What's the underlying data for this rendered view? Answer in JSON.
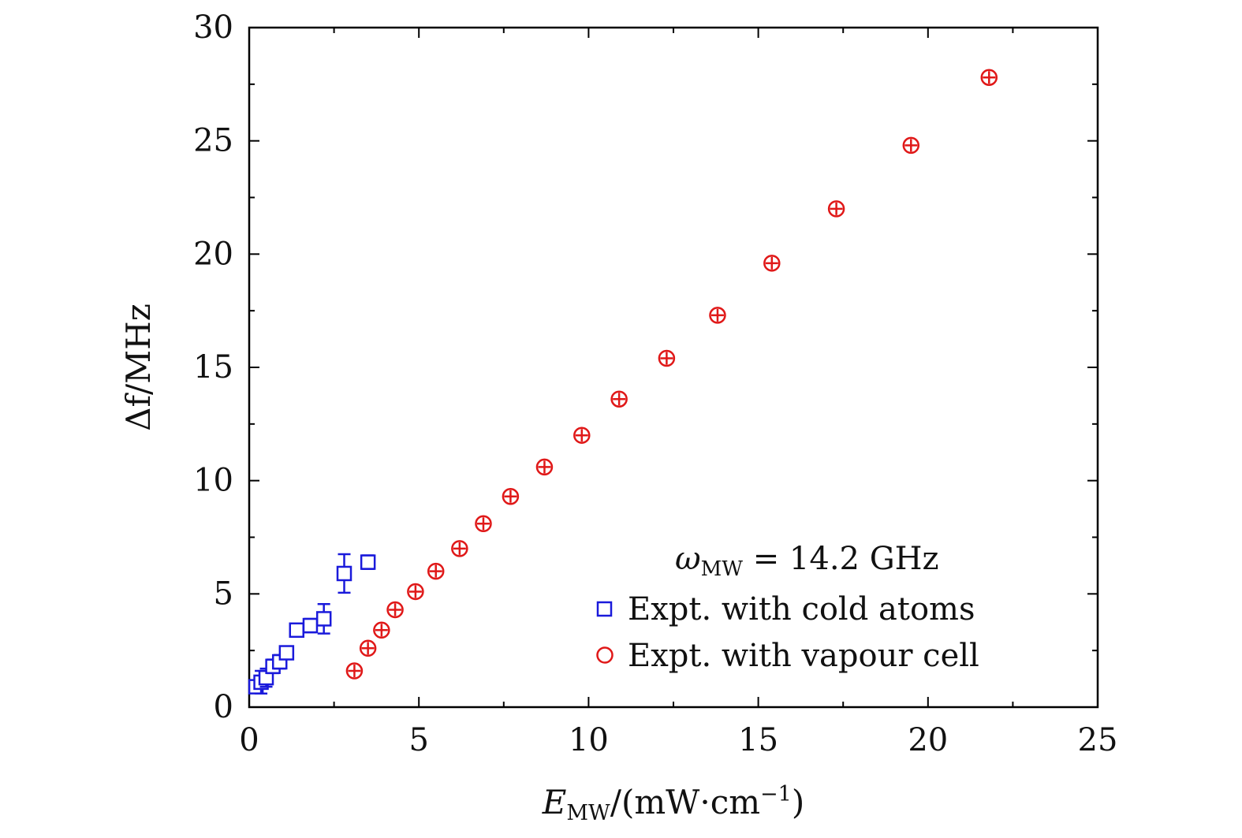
{
  "chart_data": {
    "type": "scatter",
    "xlabel": {
      "main": "E",
      "sub": "MW",
      "unit": "/(mW·cm",
      "sup": "−1",
      "close": ")"
    },
    "ylabel": "Δf/MHz",
    "xlim": [
      0,
      25
    ],
    "ylim": [
      0,
      30
    ],
    "xticks": [
      "0",
      "5",
      "10",
      "15",
      "20",
      "25"
    ],
    "yticks": [
      "0",
      "5",
      "10",
      "15",
      "20",
      "25",
      "30"
    ],
    "annotation": {
      "main": "ω",
      "sub": "MW",
      "rest": " = 14.2 GHz"
    },
    "legend_position": "bottom-right",
    "grid": false,
    "series": [
      {
        "name": "Expt. with cold atoms",
        "marker": "square",
        "color": "#1a1adb",
        "points": [
          {
            "x": 0.2,
            "y": 0.9,
            "err": 0.2
          },
          {
            "x": 0.35,
            "y": 1.1,
            "err": 0.5
          },
          {
            "x": 0.5,
            "y": 1.3,
            "err": 0.4
          },
          {
            "x": 0.7,
            "y": 1.8,
            "err": 0.3
          },
          {
            "x": 0.9,
            "y": 2.0,
            "err": 0.3
          },
          {
            "x": 1.1,
            "y": 2.4,
            "err": 0.25
          },
          {
            "x": 1.4,
            "y": 3.4,
            "err": 0.25
          },
          {
            "x": 1.8,
            "y": 3.6,
            "err": 0.3
          },
          {
            "x": 2.2,
            "y": 3.9,
            "err": 0.65
          },
          {
            "x": 2.8,
            "y": 5.9,
            "err": 0.85
          },
          {
            "x": 3.5,
            "y": 6.4,
            "err": 0.3
          }
        ]
      },
      {
        "name": "Expt. with vapour cell",
        "marker": "circle",
        "color": "#e01818",
        "points": [
          {
            "x": 3.1,
            "y": 1.6
          },
          {
            "x": 3.5,
            "y": 2.6
          },
          {
            "x": 3.9,
            "y": 3.4
          },
          {
            "x": 4.3,
            "y": 4.3
          },
          {
            "x": 4.9,
            "y": 5.1
          },
          {
            "x": 5.5,
            "y": 6.0
          },
          {
            "x": 6.2,
            "y": 7.0
          },
          {
            "x": 6.9,
            "y": 8.1
          },
          {
            "x": 7.7,
            "y": 9.3
          },
          {
            "x": 8.7,
            "y": 10.6
          },
          {
            "x": 9.8,
            "y": 12.0
          },
          {
            "x": 10.9,
            "y": 13.6
          },
          {
            "x": 12.3,
            "y": 15.4
          },
          {
            "x": 13.8,
            "y": 17.3
          },
          {
            "x": 15.4,
            "y": 19.6
          },
          {
            "x": 17.3,
            "y": 22.0
          },
          {
            "x": 19.5,
            "y": 24.8
          },
          {
            "x": 21.8,
            "y": 27.8
          }
        ]
      }
    ]
  }
}
